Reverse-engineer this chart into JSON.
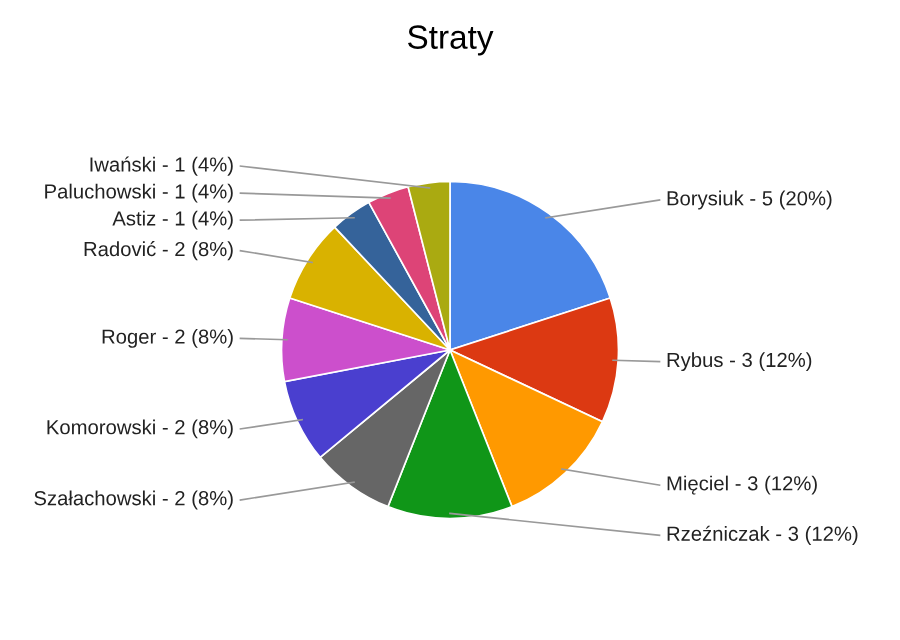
{
  "chart_data": {
    "type": "pie",
    "title": "Straty",
    "categories": [
      "Borysiuk - 5 (20%)",
      "Rybus - 3 (12%)",
      "Mięciel - 3 (12%)",
      "Rzeźniczak - 3 (12%)",
      "Szałachowski - 2 (8%)",
      "Komorowski - 2 (8%)",
      "Roger - 2 (8%)",
      "Radović - 2 (8%)",
      "Astiz - 1 (4%)",
      "Paluchowski - 1 (4%)",
      "Iwański - 1 (4%)"
    ],
    "values": [
      20,
      12,
      12,
      12,
      8,
      8,
      8,
      8,
      4,
      4,
      4
    ],
    "colors": [
      "#4a86e8",
      "#dc3912",
      "#ff9900",
      "#109618",
      "#666666",
      "#4a3fcf",
      "#cc4fcc",
      "#d9b200",
      "#35639a",
      "#dd4477",
      "#aaaa11"
    ],
    "legend": false
  }
}
